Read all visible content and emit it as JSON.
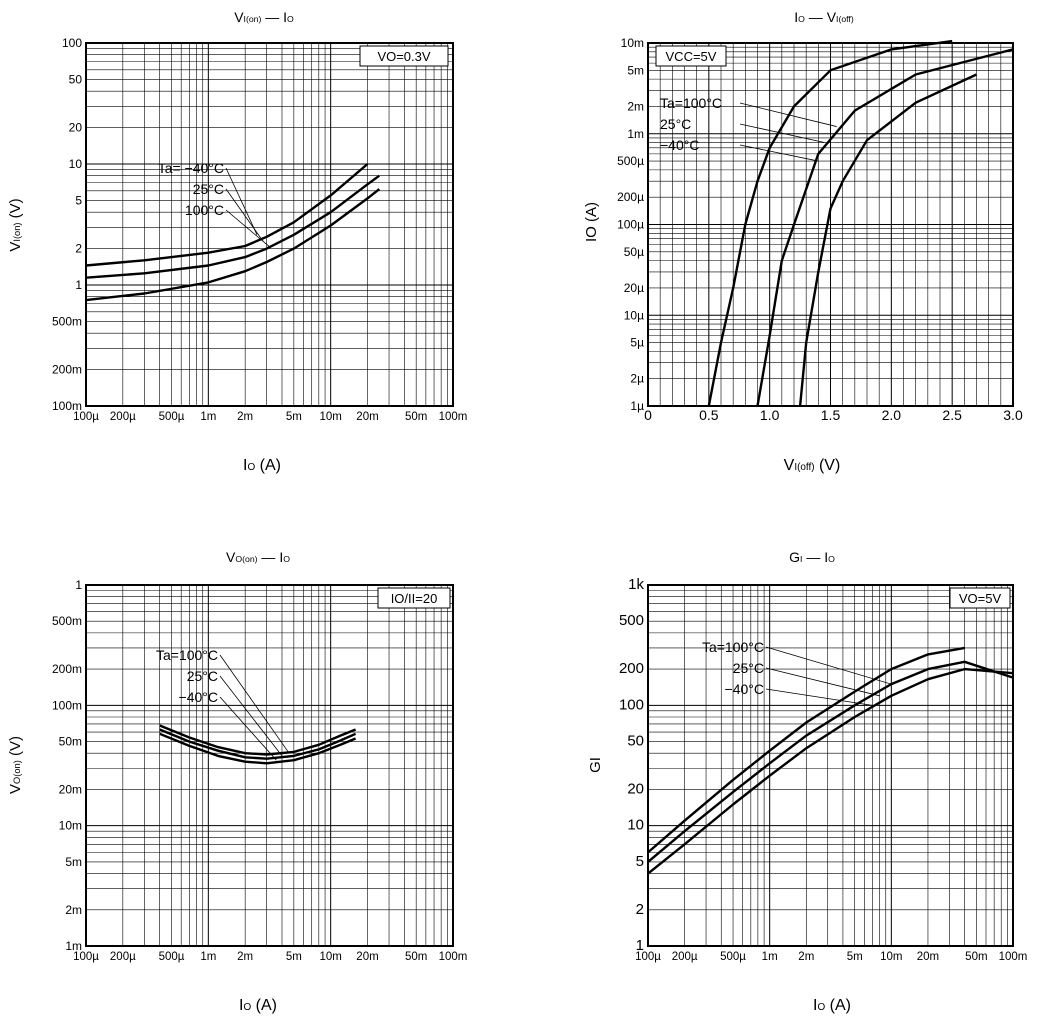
{
  "chart_data": [
    {
      "type": "line",
      "title": "VI(on) — IO",
      "title_main": "V",
      "title_sub": "I(on)",
      "title_rest": " — I",
      "title_rest_sub": "O",
      "xlabel": "IO (A)",
      "xlabel_main": "I",
      "xlabel_sub": "O",
      "xlabel_rest": " (A)",
      "ylabel": "VI(on) (V)",
      "ylabel_main": "V",
      "ylabel_sub": "I(on)",
      "ylabel_rest": " (V)",
      "x_scale": "log",
      "y_scale": "log",
      "xlim": [
        0.0001,
        0.1
      ],
      "ylim": [
        0.1,
        100
      ],
      "x_ticks": [
        0.0001,
        0.0002,
        0.0005,
        0.001,
        0.002,
        0.005,
        0.01,
        0.02,
        0.05,
        0.1
      ],
      "x_tick_labels": [
        "100µ",
        "200µ",
        "500µ",
        "1m",
        "2m",
        "5m",
        "10m",
        "20m",
        "50m",
        "100m"
      ],
      "y_ticks": [
        0.1,
        0.2,
        0.5,
        1,
        2,
        5,
        10,
        20,
        50,
        100
      ],
      "y_tick_labels": [
        "100m",
        "200m",
        "500m",
        "1",
        "2",
        "5",
        "10",
        "20",
        "50",
        "100"
      ],
      "grid": true,
      "condition": "VO=0.3V",
      "series": [
        {
          "name": "Ta=-40°C",
          "label": "Ta= −40°C",
          "x": [
            0.0001,
            0.0003,
            0.001,
            0.002,
            0.003,
            0.005,
            0.01,
            0.02
          ],
          "y": [
            1.45,
            1.6,
            1.85,
            2.1,
            2.5,
            3.3,
            5.5,
            10.0
          ]
        },
        {
          "name": "25°C",
          "label": "25°C",
          "x": [
            0.0001,
            0.0003,
            0.001,
            0.002,
            0.003,
            0.005,
            0.01,
            0.02,
            0.025
          ],
          "y": [
            1.15,
            1.25,
            1.45,
            1.7,
            2.0,
            2.6,
            4.0,
            6.8,
            8.0
          ]
        },
        {
          "name": "100°C",
          "label": "100°C",
          "x": [
            0.0001,
            0.0003,
            0.001,
            0.002,
            0.003,
            0.005,
            0.01,
            0.02,
            0.025
          ],
          "y": [
            0.75,
            0.85,
            1.05,
            1.3,
            1.55,
            2.0,
            3.1,
            5.2,
            6.2
          ]
        }
      ],
      "label_anchor": [
        [
          0.0025,
          2.6
        ],
        [
          0.0028,
          2.3
        ],
        [
          0.0032,
          2.05
        ]
      ]
    },
    {
      "type": "line",
      "title": "IO — VI(off)",
      "title_main": "I",
      "title_sub": "O",
      "title_rest": " — V",
      "title_rest_sub": "I(off)",
      "xlabel": "VI(off) (V)",
      "xlabel_main": "V",
      "xlabel_sub": "I(off)",
      "xlabel_rest": " (V)",
      "ylabel": "IO (A)",
      "x_scale": "linear",
      "y_scale": "log",
      "xlim": [
        0,
        3.0
      ],
      "ylim": [
        1e-06,
        0.01
      ],
      "x_ticks": [
        0,
        0.5,
        1.0,
        1.5,
        2.0,
        2.5,
        3.0
      ],
      "x_tick_labels": [
        "0",
        "0.5",
        "1.0",
        "1.5",
        "2.0",
        "2.5",
        "3.0"
      ],
      "y_ticks": [
        1e-06,
        2e-06,
        5e-06,
        1e-05,
        2e-05,
        5e-05,
        0.0001,
        0.0002,
        0.0005,
        0.001,
        0.002,
        0.005,
        0.01
      ],
      "y_tick_labels": [
        "1µ",
        "2µ",
        "5µ",
        "10µ",
        "20µ",
        "50µ",
        "100µ",
        "200µ",
        "500µ",
        "1m",
        "2m",
        "5m",
        "10m"
      ],
      "grid": true,
      "condition": "VCC=5V",
      "series": [
        {
          "name": "Ta=100°C",
          "label": "Ta=100°C",
          "x": [
            0.5,
            0.6,
            0.7,
            0.8,
            0.9,
            1.0,
            1.2,
            1.5,
            2.0,
            2.5
          ],
          "y": [
            1e-06,
            5e-06,
            2e-05,
            0.0001,
            0.0003,
            0.0007,
            0.002,
            0.005,
            0.0085,
            0.0105
          ]
        },
        {
          "name": "25°C",
          "label": "25°C",
          "x": [
            0.9,
            1.0,
            1.1,
            1.2,
            1.4,
            1.7,
            2.2,
            3.0
          ],
          "y": [
            1e-06,
            6e-06,
            4e-05,
            0.0001,
            0.0006,
            0.0018,
            0.0045,
            0.0085
          ]
        },
        {
          "name": "-40°C",
          "label": "−40°C",
          "x": [
            1.25,
            1.3,
            1.4,
            1.5,
            1.6,
            1.8,
            2.2,
            2.7
          ],
          "y": [
            1e-06,
            5e-06,
            3e-05,
            0.00015,
            0.0003,
            0.00085,
            0.0022,
            0.0045
          ]
        }
      ],
      "label_anchor": [
        [
          1.55,
          0.0012
        ],
        [
          1.45,
          0.0008
        ],
        [
          1.4,
          0.0005
        ]
      ]
    },
    {
      "type": "line",
      "title": "VO(on) — IO",
      "title_main": "V",
      "title_sub": "O(on)",
      "title_rest": " — I",
      "title_rest_sub": "O",
      "xlabel": "IO (A)",
      "xlabel_main": "I",
      "xlabel_sub": "O",
      "xlabel_rest": " (A)",
      "ylabel": "VO(on) (V)",
      "ylabel_main": "V",
      "ylabel_sub": "O(on)",
      "ylabel_rest": " (V)",
      "x_scale": "log",
      "y_scale": "log",
      "xlim": [
        0.0001,
        0.1
      ],
      "ylim": [
        0.001,
        1
      ],
      "x_ticks": [
        0.0001,
        0.0002,
        0.0005,
        0.001,
        0.002,
        0.005,
        0.01,
        0.02,
        0.05,
        0.1
      ],
      "x_tick_labels": [
        "100µ",
        "200µ",
        "500µ",
        "1m",
        "2m",
        "5m",
        "10m",
        "20m",
        "50m",
        "100m"
      ],
      "y_ticks": [
        0.001,
        0.002,
        0.005,
        0.01,
        0.02,
        0.05,
        0.1,
        0.2,
        0.5,
        1
      ],
      "y_tick_labels": [
        "1m",
        "2m",
        "5m",
        "10m",
        "20m",
        "50m",
        "100m",
        "200m",
        "500m",
        "1"
      ],
      "grid": true,
      "condition": "IO/II=20",
      "series": [
        {
          "name": "Ta=100°C",
          "label": "Ta=100°C",
          "x": [
            0.0004,
            0.0007,
            0.0012,
            0.002,
            0.003,
            0.005,
            0.008,
            0.012,
            0.016
          ],
          "y": [
            0.068,
            0.054,
            0.045,
            0.04,
            0.039,
            0.041,
            0.047,
            0.056,
            0.063
          ]
        },
        {
          "name": "25°C",
          "label": "25°C",
          "x": [
            0.0004,
            0.0007,
            0.0012,
            0.002,
            0.003,
            0.005,
            0.008,
            0.012,
            0.016
          ],
          "y": [
            0.063,
            0.05,
            0.042,
            0.037,
            0.036,
            0.038,
            0.043,
            0.051,
            0.058
          ]
        },
        {
          "name": "-40°C",
          "label": "−40°C",
          "x": [
            0.0004,
            0.0007,
            0.0012,
            0.002,
            0.003,
            0.005,
            0.008,
            0.012,
            0.016
          ],
          "y": [
            0.058,
            0.046,
            0.038,
            0.034,
            0.033,
            0.035,
            0.04,
            0.047,
            0.053
          ]
        }
      ],
      "label_anchor": [
        [
          0.0045,
          0.041
        ],
        [
          0.004,
          0.038
        ],
        [
          0.0036,
          0.035
        ]
      ]
    },
    {
      "type": "line",
      "title": "GI — IO",
      "title_main": "G",
      "title_sub": "I",
      "title_rest": " — I",
      "title_rest_sub": "O",
      "xlabel": "IO (A)",
      "xlabel_main": "I",
      "xlabel_sub": "O",
      "xlabel_rest": " (A)",
      "ylabel": "GI",
      "x_scale": "log",
      "y_scale": "log",
      "xlim": [
        0.0001,
        0.1
      ],
      "ylim": [
        1,
        1000
      ],
      "x_ticks": [
        0.0001,
        0.0002,
        0.0005,
        0.001,
        0.002,
        0.005,
        0.01,
        0.02,
        0.05,
        0.1
      ],
      "x_tick_labels": [
        "100µ",
        "200µ",
        "500µ",
        "1m",
        "2m",
        "5m",
        "10m",
        "20m",
        "50m",
        "100m"
      ],
      "y_ticks": [
        1,
        2,
        5,
        10,
        20,
        50,
        100,
        200,
        500,
        1000
      ],
      "y_tick_labels": [
        "1",
        "2",
        "5",
        "10",
        "20",
        "50",
        "100",
        "200",
        "500",
        "1k"
      ],
      "grid": true,
      "condition": "VO=5V",
      "series": [
        {
          "name": "Ta=100°C",
          "label": "Ta=100°C",
          "x": [
            0.0001,
            0.0002,
            0.0005,
            0.001,
            0.002,
            0.005,
            0.01,
            0.02,
            0.04
          ],
          "y": [
            6,
            11,
            24,
            42,
            72,
            130,
            200,
            265,
            300
          ]
        },
        {
          "name": "25°C",
          "label": "25°C",
          "x": [
            0.0001,
            0.0002,
            0.0005,
            0.001,
            0.002,
            0.005,
            0.01,
            0.02,
            0.04,
            0.1
          ],
          "y": [
            5,
            9,
            19,
            33,
            56,
            100,
            150,
            200,
            230,
            170
          ]
        },
        {
          "name": "-40°C",
          "label": "−40°C",
          "x": [
            0.0001,
            0.0002,
            0.0005,
            0.001,
            0.002,
            0.005,
            0.01,
            0.02,
            0.04,
            0.1
          ],
          "y": [
            4,
            7,
            15,
            26,
            44,
            80,
            120,
            165,
            200,
            185
          ]
        }
      ],
      "label_anchor": [
        [
          0.01,
          150
        ],
        [
          0.008,
          120
        ],
        [
          0.007,
          100
        ]
      ]
    }
  ]
}
